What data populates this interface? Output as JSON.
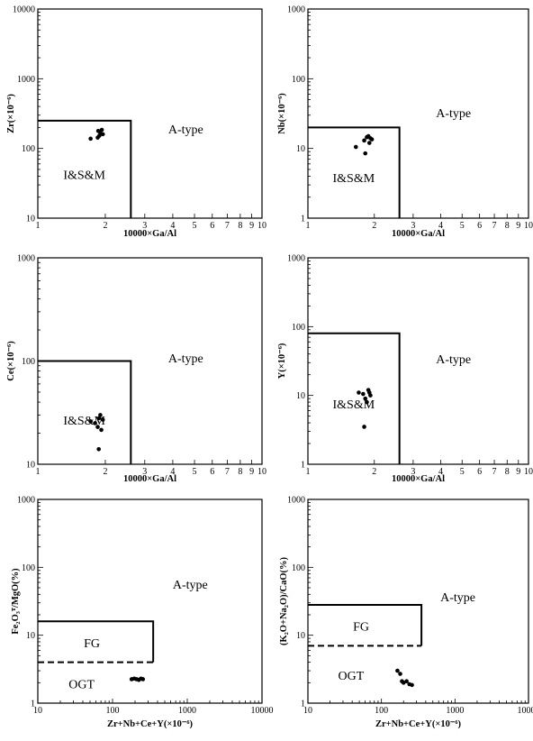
{
  "chart_data": [
    {
      "type": "scatter",
      "xlabel": "10000×Ga/Al",
      "ylabel": "Zr(×10⁻⁶)",
      "xscale": "log",
      "yscale": "log",
      "xlim": [
        1,
        10
      ],
      "ylim": [
        10,
        10000
      ],
      "xticks": [
        "1",
        "2",
        "3",
        "4",
        "5",
        "6",
        "7",
        "8",
        "9",
        "10"
      ],
      "yticks": [
        "10",
        "100",
        "1000",
        "10000"
      ],
      "fields": [
        {
          "label": "I&S&M",
          "type": "box",
          "x": [
            1,
            2.6
          ],
          "y": [
            10,
            250
          ]
        },
        {
          "label": "A-type",
          "type": "outside"
        }
      ],
      "points": [
        [
          1.72,
          138
        ],
        [
          1.85,
          143
        ],
        [
          1.88,
          152
        ],
        [
          1.9,
          168
        ],
        [
          1.93,
          185
        ],
        [
          1.86,
          178
        ],
        [
          1.95,
          160
        ]
      ]
    },
    {
      "type": "scatter",
      "xlabel": "10000×Ga/Al",
      "ylabel": "Nb(×10⁻⁶)",
      "xscale": "log",
      "yscale": "log",
      "xlim": [
        1,
        10
      ],
      "ylim": [
        1,
        1000
      ],
      "xticks": [
        "1",
        "2",
        "3",
        "4",
        "5",
        "6",
        "7",
        "8",
        "9",
        "10"
      ],
      "yticks": [
        "1",
        "10",
        "100",
        "1000"
      ],
      "fields": [
        {
          "label": "I&S&M",
          "type": "box",
          "x": [
            1,
            2.6
          ],
          "y": [
            1,
            20
          ]
        },
        {
          "label": "A-type",
          "type": "outside"
        }
      ],
      "points": [
        [
          1.65,
          10.5
        ],
        [
          1.8,
          13
        ],
        [
          1.85,
          14.5
        ],
        [
          1.88,
          15
        ],
        [
          1.9,
          12
        ],
        [
          1.92,
          14
        ],
        [
          1.82,
          8.5
        ],
        [
          1.95,
          13.5
        ]
      ]
    },
    {
      "type": "scatter",
      "xlabel": "10000×Ga/Al",
      "ylabel": "Ce(×10⁻⁶)",
      "xscale": "log",
      "yscale": "log",
      "xlim": [
        1,
        10
      ],
      "ylim": [
        10,
        1000
      ],
      "xticks": [
        "1",
        "2",
        "3",
        "4",
        "5",
        "6",
        "7",
        "8",
        "9",
        "10"
      ],
      "yticks": [
        "10",
        "100",
        "1000"
      ],
      "fields": [
        {
          "label": "I&S&M",
          "type": "box",
          "x": [
            1,
            2.6
          ],
          "y": [
            10,
            100
          ]
        },
        {
          "label": "A-type",
          "type": "outside"
        }
      ],
      "points": [
        [
          1.72,
          26
        ],
        [
          1.8,
          25
        ],
        [
          1.85,
          23
        ],
        [
          1.88,
          28
        ],
        [
          1.9,
          30
        ],
        [
          1.92,
          21.5
        ],
        [
          1.95,
          27
        ],
        [
          1.87,
          14
        ]
      ]
    },
    {
      "type": "scatter",
      "xlabel": "10000×Ga/Al",
      "ylabel": "Y(×10⁻⁶)",
      "xscale": "log",
      "yscale": "log",
      "xlim": [
        1,
        10
      ],
      "ylim": [
        1,
        1000
      ],
      "xticks": [
        "1",
        "2",
        "3",
        "4",
        "5",
        "6",
        "7",
        "8",
        "9",
        "10"
      ],
      "yticks": [
        "1",
        "10",
        "100",
        "1000"
      ],
      "fields": [
        {
          "label": "I&S&M",
          "type": "box",
          "x": [
            1,
            2.6
          ],
          "y": [
            1,
            80
          ]
        },
        {
          "label": "A-type",
          "type": "outside"
        }
      ],
      "points": [
        [
          1.7,
          11
        ],
        [
          1.78,
          10.5
        ],
        [
          1.82,
          9
        ],
        [
          1.85,
          8
        ],
        [
          1.88,
          12
        ],
        [
          1.9,
          11
        ],
        [
          1.92,
          10
        ],
        [
          1.8,
          3.5
        ]
      ]
    },
    {
      "type": "scatter",
      "xlabel": "Zr+Nb+Ce+Y(×10⁻⁶)",
      "ylabel": "Fe₂O₃ᵀ/MgO(%)",
      "xscale": "log",
      "yscale": "log",
      "xlim": [
        10,
        10000
      ],
      "ylim": [
        1,
        1000
      ],
      "xticks": [
        "10",
        "100",
        "1000",
        "10000"
      ],
      "yticks": [
        "1",
        "10",
        "100",
        "1000"
      ],
      "fields": [
        {
          "label": "FG",
          "type": "box",
          "x": [
            10,
            350
          ],
          "y": [
            4,
            16
          ]
        },
        {
          "label": "OGT",
          "type": "box",
          "x": [
            10,
            350
          ],
          "y": [
            1,
            4
          ],
          "top_line": "dashed"
        },
        {
          "label": "A-type",
          "type": "outside"
        }
      ],
      "points": [
        [
          180,
          2.25
        ],
        [
          195,
          2.3
        ],
        [
          210,
          2.25
        ],
        [
          225,
          2.2
        ],
        [
          240,
          2.3
        ],
        [
          255,
          2.25
        ]
      ]
    },
    {
      "type": "scatter",
      "xlabel": "Zr+Nb+Ce+Y(×10⁻⁶)",
      "ylabel": "(K₂O+Na₂O)/CaO(%)",
      "xscale": "log",
      "yscale": "log",
      "xlim": [
        10,
        10000
      ],
      "ylim": [
        1,
        1000
      ],
      "xticks": [
        "10",
        "100",
        "1000",
        "10000"
      ],
      "yticks": [
        "1",
        "10",
        "100",
        "1000"
      ],
      "fields": [
        {
          "label": "FG",
          "type": "box",
          "x": [
            10,
            350
          ],
          "y": [
            7,
            28
          ]
        },
        {
          "label": "OGT",
          "type": "box",
          "x": [
            10,
            350
          ],
          "y": [
            1,
            7
          ],
          "top_line": "dashed"
        },
        {
          "label": "A-type",
          "type": "outside"
        }
      ],
      "points": [
        [
          165,
          3
        ],
        [
          180,
          2.7
        ],
        [
          190,
          2.1
        ],
        [
          200,
          2
        ],
        [
          220,
          2.1
        ],
        [
          240,
          1.9
        ],
        [
          260,
          1.85
        ]
      ]
    }
  ]
}
